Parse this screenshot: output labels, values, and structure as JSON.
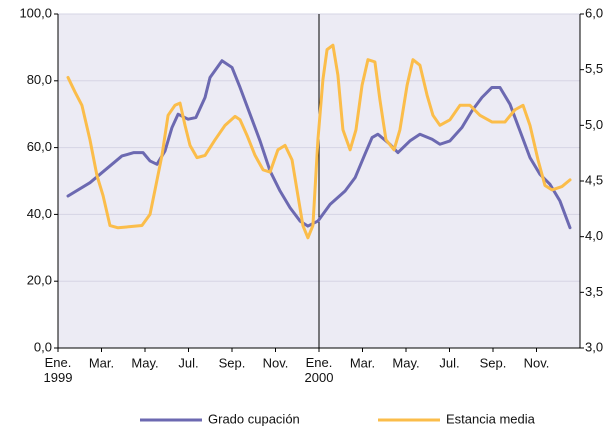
{
  "chart_data": {
    "type": "line",
    "xlim": [
      0,
      24
    ],
    "xticks": [
      {
        "value": 0,
        "label": "Ene.\n1999"
      },
      {
        "value": 2,
        "label": "Mar."
      },
      {
        "value": 4,
        "label": "May."
      },
      {
        "value": 6,
        "label": "Jul."
      },
      {
        "value": 8,
        "label": "Sep."
      },
      {
        "value": 10,
        "label": "Nov."
      },
      {
        "value": 12,
        "label": "Ene.\n2000"
      },
      {
        "value": 14,
        "label": "Mar."
      },
      {
        "value": 16,
        "label": "May."
      },
      {
        "value": 18,
        "label": "Jul."
      },
      {
        "value": 20,
        "label": "Sep."
      },
      {
        "value": 22,
        "label": "Nov."
      }
    ],
    "vline": 12,
    "ylim": [
      0,
      100
    ],
    "yticks": [
      {
        "value": 0,
        "label": "0,0"
      },
      {
        "value": 20,
        "label": "20,0"
      },
      {
        "value": 40,
        "label": "40,0"
      },
      {
        "value": 60,
        "label": "60,0"
      },
      {
        "value": 80,
        "label": "80,0"
      },
      {
        "value": 100,
        "label": "100,0"
      }
    ],
    "y2lim": [
      3,
      6
    ],
    "y2ticks": [
      {
        "value": 3,
        "label": "3,0"
      },
      {
        "value": 3.5,
        "label": "3,5"
      },
      {
        "value": 4,
        "label": "4,0"
      },
      {
        "value": 4.5,
        "label": "4,5"
      },
      {
        "value": 5,
        "label": "5,0"
      },
      {
        "value": 5.5,
        "label": "5,5"
      },
      {
        "value": 6,
        "label": "6,0"
      }
    ],
    "grid": true,
    "legend": "bottom",
    "series": [
      {
        "name": "Grado cupación",
        "color": "#6c69b1",
        "x": [
          0.46,
          1.47,
          1.93,
          2.48,
          2.94,
          3.49,
          3.91,
          4.23,
          4.55,
          4.92,
          5.24,
          5.52,
          5.98,
          6.34,
          6.76,
          6.99,
          7.54,
          8.0,
          8.37,
          8.83,
          9.29,
          9.75,
          10.21,
          10.67,
          11.13,
          11.49,
          11.95,
          12.51,
          13.2,
          13.66,
          14.11,
          14.44,
          14.71,
          15.26,
          15.63,
          16.18,
          16.64,
          17.2,
          17.56,
          18.02,
          18.57,
          19.03,
          19.49,
          19.95,
          20.32,
          20.78,
          21.24,
          21.7,
          22.16,
          22.62,
          23.08,
          23.54
        ],
        "values": [
          45.5,
          49.5,
          52,
          55,
          57.5,
          58.5,
          58.5,
          56,
          55,
          59,
          66,
          70,
          68.5,
          69,
          75,
          81,
          86,
          84,
          78,
          70,
          62,
          53,
          47,
          42,
          38,
          36.5,
          38,
          43,
          47,
          51,
          58,
          63,
          64,
          61,
          58.5,
          62,
          64,
          62.5,
          61,
          62,
          66,
          71,
          75,
          78,
          78,
          73,
          65,
          57,
          52,
          49,
          44,
          36
        ]
      },
      {
        "name": "Estancia media",
        "color": "#fbbd4a",
        "axis": "y2",
        "x": [
          0.46,
          0.78,
          1.1,
          1.47,
          1.79,
          2.07,
          2.39,
          2.76,
          3.31,
          3.86,
          4.23,
          4.46,
          4.78,
          5.06,
          5.38,
          5.61,
          5.84,
          6.07,
          6.39,
          6.76,
          7.22,
          7.68,
          8.14,
          8.37,
          8.69,
          9.06,
          9.43,
          9.75,
          10.11,
          10.44,
          10.76,
          11.03,
          11.26,
          11.49,
          11.72,
          11.95,
          12.18,
          12.37,
          12.64,
          12.87,
          13.1,
          13.43,
          13.7,
          13.98,
          14.25,
          14.57,
          14.8,
          15.08,
          15.45,
          15.72,
          16.05,
          16.32,
          16.64,
          16.97,
          17.24,
          17.56,
          18.02,
          18.48,
          18.94,
          19.4,
          19.95,
          20.55,
          21.01,
          21.38,
          21.7,
          22.07,
          22.39,
          22.71,
          23.17,
          23.54
        ],
        "values": [
          5.43,
          5.3,
          5.18,
          4.87,
          4.55,
          4.37,
          4.1,
          4.08,
          4.09,
          4.1,
          4.2,
          4.42,
          4.73,
          5.09,
          5.18,
          5.2,
          5.0,
          4.82,
          4.71,
          4.73,
          4.87,
          5.0,
          5.08,
          5.05,
          4.91,
          4.73,
          4.6,
          4.58,
          4.78,
          4.82,
          4.69,
          4.37,
          4.1,
          3.99,
          4.1,
          4.87,
          5.41,
          5.68,
          5.72,
          5.45,
          4.96,
          4.78,
          4.96,
          5.36,
          5.59,
          5.57,
          5.23,
          4.87,
          4.78,
          4.96,
          5.36,
          5.59,
          5.54,
          5.27,
          5.09,
          5.0,
          5.05,
          5.18,
          5.18,
          5.09,
          5.03,
          5.03,
          5.14,
          5.18,
          5.0,
          4.69,
          4.46,
          4.42,
          4.45,
          4.51
        ]
      }
    ]
  }
}
